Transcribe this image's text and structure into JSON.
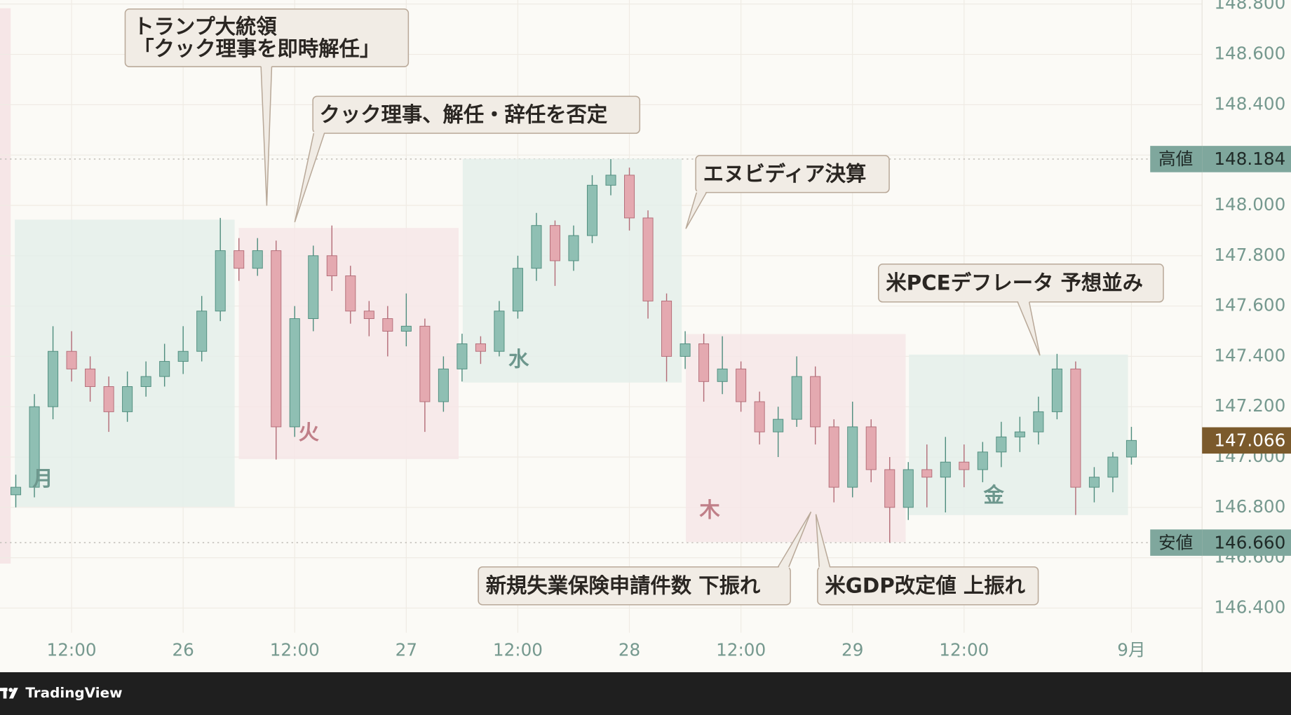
{
  "brand": "TradingView",
  "chart_data": {
    "type": "candlestick",
    "x": [
      6,
      8,
      10,
      12,
      14,
      16,
      18,
      20,
      22,
      24,
      26,
      28,
      30,
      32,
      34,
      36,
      38,
      40,
      42,
      44,
      46,
      48,
      50,
      52,
      54,
      56,
      58,
      60,
      62,
      64,
      66,
      68,
      70,
      72,
      74,
      76,
      78,
      80,
      82,
      84,
      86,
      88,
      90,
      92,
      94,
      96,
      98,
      100,
      102,
      104,
      106,
      108,
      110,
      112,
      114,
      116,
      118,
      120,
      122,
      124,
      126
    ],
    "open": [
      146.85,
      146.88,
      147.2,
      147.42,
      147.35,
      147.28,
      147.18,
      147.28,
      147.32,
      147.38,
      147.42,
      147.58,
      147.82,
      147.75,
      147.82,
      147.12,
      147.55,
      147.8,
      147.72,
      147.58,
      147.55,
      147.5,
      147.52,
      147.22,
      147.35,
      147.45,
      147.42,
      147.58,
      147.75,
      147.92,
      147.78,
      147.88,
      148.08,
      148.12,
      147.95,
      147.62,
      147.4,
      147.45,
      147.3,
      147.35,
      147.22,
      147.1,
      147.15,
      147.32,
      147.12,
      146.88,
      147.12,
      146.95,
      146.8,
      146.95,
      146.92,
      146.98,
      146.95,
      147.02,
      147.08,
      147.1,
      147.18,
      147.35,
      146.88,
      146.92,
      147.0
    ],
    "high": [
      146.93,
      147.25,
      147.52,
      147.5,
      147.4,
      147.32,
      147.34,
      147.38,
      147.45,
      147.52,
      147.64,
      147.95,
      147.87,
      147.87,
      147.86,
      147.6,
      147.84,
      147.92,
      147.76,
      147.62,
      147.6,
      147.65,
      147.55,
      147.4,
      147.49,
      147.48,
      147.62,
      147.8,
      147.97,
      147.94,
      147.92,
      148.12,
      148.184,
      148.15,
      147.98,
      147.65,
      147.5,
      147.49,
      147.48,
      147.38,
      147.26,
      147.2,
      147.4,
      147.36,
      147.15,
      147.22,
      147.15,
      147.0,
      146.98,
      147.05,
      147.08,
      147.05,
      147.06,
      147.14,
      147.16,
      147.24,
      147.41,
      147.38,
      146.96,
      147.02,
      147.12
    ],
    "low": [
      146.8,
      146.84,
      147.15,
      147.3,
      147.22,
      147.1,
      147.14,
      147.24,
      147.28,
      147.33,
      147.38,
      147.54,
      147.7,
      147.72,
      146.99,
      147.08,
      147.5,
      147.66,
      147.53,
      147.48,
      147.4,
      147.44,
      147.1,
      147.18,
      147.3,
      147.37,
      147.4,
      147.55,
      147.7,
      147.68,
      147.74,
      147.85,
      148.04,
      147.9,
      147.55,
      147.3,
      147.35,
      147.22,
      147.25,
      147.18,
      147.05,
      147.0,
      147.12,
      147.05,
      146.82,
      146.84,
      146.9,
      146.66,
      146.75,
      146.8,
      146.78,
      146.88,
      146.9,
      146.96,
      147.02,
      147.05,
      147.15,
      146.77,
      146.82,
      146.86,
      146.97
    ],
    "close": [
      146.88,
      147.2,
      147.42,
      147.35,
      147.28,
      147.18,
      147.28,
      147.32,
      147.38,
      147.42,
      147.58,
      147.82,
      147.75,
      147.82,
      147.12,
      147.55,
      147.8,
      147.72,
      147.58,
      147.55,
      147.5,
      147.52,
      147.22,
      147.35,
      147.45,
      147.42,
      147.58,
      147.75,
      147.92,
      147.78,
      147.88,
      148.08,
      148.12,
      147.95,
      147.62,
      147.4,
      147.45,
      147.3,
      147.35,
      147.22,
      147.1,
      147.15,
      147.32,
      147.12,
      146.88,
      147.12,
      146.95,
      146.8,
      146.95,
      146.92,
      146.98,
      146.95,
      147.02,
      147.08,
      147.1,
      147.18,
      147.35,
      146.88,
      146.92,
      147.0,
      147.066
    ],
    "up_color": "#8fbfb3",
    "down_color": "#e4a9b0",
    "xlim": [
      4.3,
      133.6
    ],
    "xticks": [
      {
        "value": 12,
        "label": "12:00"
      },
      {
        "value": 24,
        "label": "26"
      },
      {
        "value": 36,
        "label": "12:00"
      },
      {
        "value": 48,
        "label": "27"
      },
      {
        "value": 60,
        "label": "12:00"
      },
      {
        "value": 72,
        "label": "28"
      },
      {
        "value": 84,
        "label": "12:00"
      },
      {
        "value": 96,
        "label": "29"
      },
      {
        "value": 108,
        "label": "12:00"
      },
      {
        "value": 126,
        "label": "9月"
      }
    ],
    "ylim": [
      146.302,
      148.816
    ],
    "yticks": [
      {
        "value": 146.4,
        "label": "146.400"
      },
      {
        "value": 146.6,
        "label": "146.600"
      },
      {
        "value": 146.8,
        "label": "146.800"
      },
      {
        "value": 147,
        "label": "147.000"
      },
      {
        "value": 147.2,
        "label": "147.200"
      },
      {
        "value": 147.4,
        "label": "147.400"
      },
      {
        "value": 147.6,
        "label": "147.600"
      },
      {
        "value": 147.8,
        "label": "147.800"
      },
      {
        "value": 148,
        "label": "148.000"
      },
      {
        "value": 148.2,
        "label": "148.200"
      },
      {
        "value": 148.4,
        "label": "148.400"
      },
      {
        "value": 148.6,
        "label": "148.600"
      },
      {
        "value": 148.8,
        "label": "148.800"
      }
    ],
    "grid": true,
    "day_labels": [
      "月",
      "火",
      "水",
      "木",
      "金"
    ],
    "annotations": [
      [
        "トランプ大統領",
        "「クック理事を即時解任」"
      ],
      [
        "クック理事、解任・辞任を否定"
      ],
      [
        "エヌビディア決算"
      ],
      [
        "米PCEデフレータ 予想並み"
      ],
      [
        "新規失業保険申請件数 下振れ"
      ],
      [
        "米GDP改定値 上振れ"
      ]
    ],
    "price_lines": [
      {
        "name": "高値",
        "value": 148.184
      },
      {
        "name": "安値",
        "value": 146.66,
        "value_label": "146.660"
      }
    ],
    "last_price": 147.066
  }
}
